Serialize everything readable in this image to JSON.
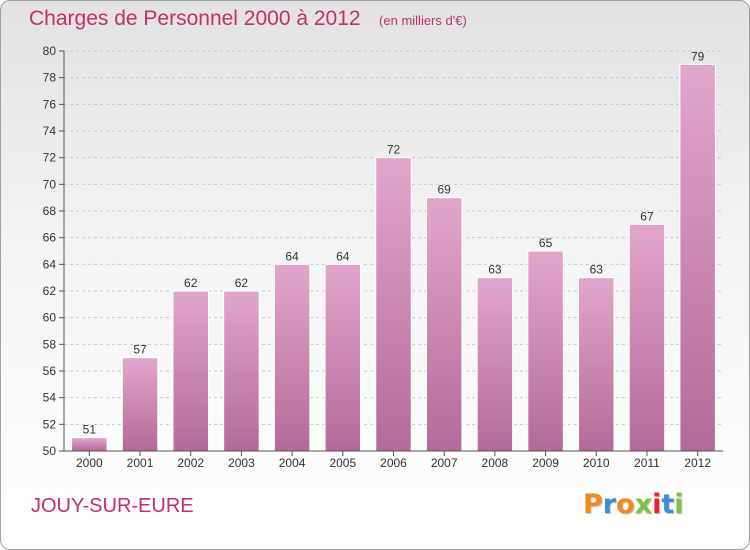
{
  "header": {
    "title": "Charges de Personnel 2000 à 2012",
    "subtitle": "(en milliers d'€)"
  },
  "footer": {
    "commune": "JOUY-SUR-EURE",
    "brand": "Proxiti"
  },
  "colors": {
    "title": "#c0306a",
    "bar_top": "#e2a6cb",
    "bar_bottom": "#b26b98",
    "grid": "#c8c8c8",
    "brand_letters": [
      "#f08a1c",
      "#3a8fd8",
      "#f08a1c",
      "#7cc242",
      "#e8242e",
      "#3a8fd8",
      "#7cc242"
    ]
  },
  "chart_data": {
    "type": "bar",
    "categories": [
      "2000",
      "2001",
      "2002",
      "2003",
      "2004",
      "2005",
      "2006",
      "2007",
      "2008",
      "2009",
      "2010",
      "2011",
      "2012"
    ],
    "values": [
      51,
      57,
      62,
      62,
      64,
      64,
      72,
      69,
      63,
      65,
      63,
      67,
      79
    ],
    "ylim": [
      50,
      80
    ],
    "yticks": [
      50,
      52,
      54,
      56,
      58,
      60,
      62,
      64,
      66,
      68,
      70,
      72,
      74,
      76,
      78,
      80
    ],
    "grid": true,
    "title": "Charges de Personnel 2000 à 2012",
    "xlabel": "",
    "ylabel": ""
  }
}
